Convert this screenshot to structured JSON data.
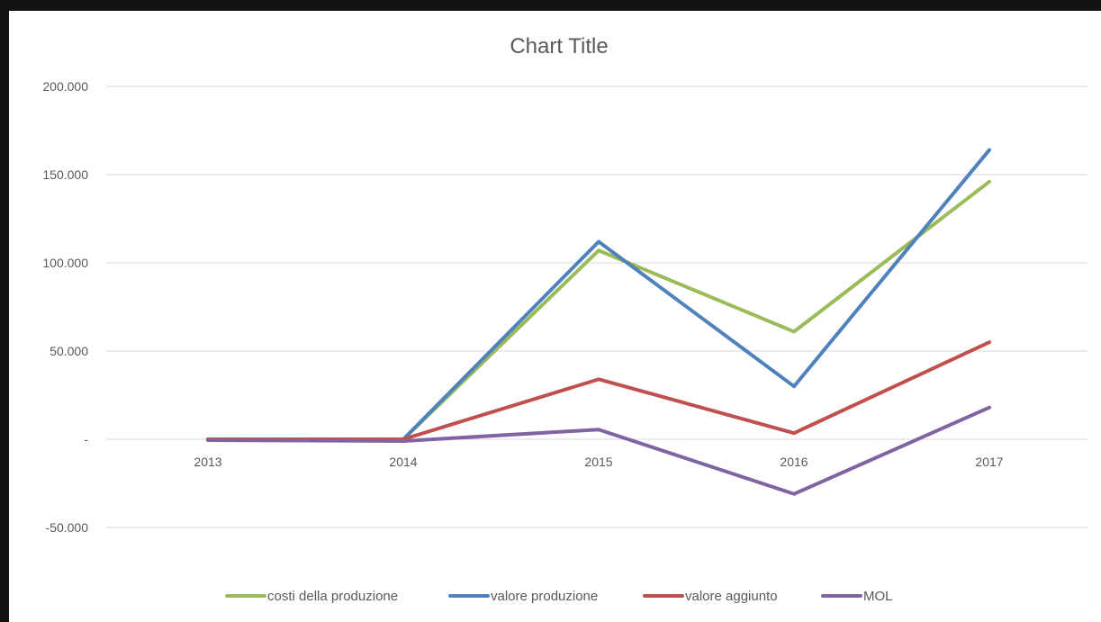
{
  "chart_data": {
    "type": "line",
    "title": "Chart Title",
    "xlabel": "",
    "ylabel": "",
    "categories": [
      "2013",
      "2014",
      "2015",
      "2016",
      "2017"
    ],
    "ylim": [
      -50000,
      200000
    ],
    "yticks": [
      200000,
      150000,
      100000,
      50000,
      0,
      -50000
    ],
    "ytick_labels": [
      "200.000",
      "150.000",
      "100.000",
      "50.000",
      "-",
      "-50.000"
    ],
    "grid": true,
    "legend_position": "bottom",
    "series": [
      {
        "name": "costi della produzione",
        "color": "#9bbb59",
        "values": [
          0,
          0,
          107000,
          61000,
          146000
        ]
      },
      {
        "name": "valore produzione",
        "color": "#4f81bd",
        "values": [
          0,
          0,
          112000,
          30000,
          164000
        ]
      },
      {
        "name": "valore aggiunto",
        "color": "#c0504d",
        "values": [
          0,
          0,
          34000,
          3500,
          55000
        ]
      },
      {
        "name": "MOL",
        "color": "#8064a2",
        "values": [
          -500,
          -1000,
          5500,
          -31000,
          18000
        ]
      }
    ]
  }
}
